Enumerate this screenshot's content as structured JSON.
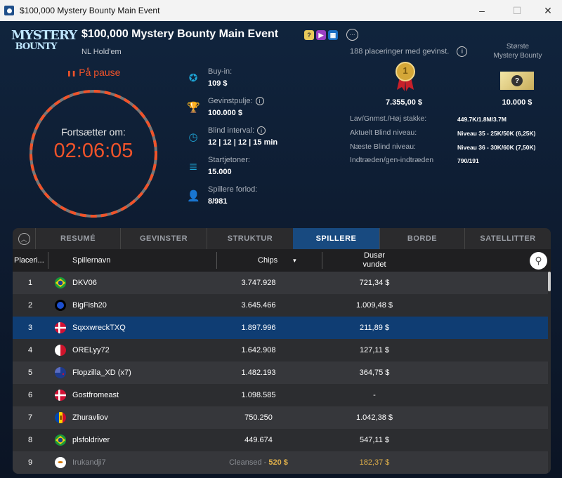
{
  "window": {
    "title": "$100,000 Mystery Bounty Main Event",
    "minimize": "–",
    "maximize": "☐",
    "close": "✕"
  },
  "header": {
    "logo_line1": "MYSTERY",
    "logo_line2": "BOUNTY",
    "title": "$100,000 Mystery Bounty Main Event",
    "game": "NL Hold'em",
    "badges": [
      {
        "icon": "question-badge-icon",
        "glyph": "?",
        "color": "#e8c95a"
      },
      {
        "icon": "video-badge-icon",
        "glyph": "▶",
        "color": "#9b3fc3"
      },
      {
        "icon": "calendar-badge-icon",
        "glyph": "▦",
        "color": "#1b6fc4"
      }
    ],
    "more": "···"
  },
  "status": {
    "pause_icon": "❚❚",
    "pause": "På pause",
    "resume_label": "Fortsætter om:",
    "countdown": "02:06:05"
  },
  "info": [
    {
      "icon": "chip-icon",
      "glyph": "✪",
      "label": "Buy-in:",
      "value": "109 $"
    },
    {
      "icon": "trophy-icon",
      "glyph": "🏆",
      "label": "Gevinstpulje:",
      "value": "100.000 $",
      "info": true
    },
    {
      "icon": "clock-icon",
      "glyph": "◷",
      "label": "Blind interval:",
      "value": "12 | 12 | 12 | 15 min",
      "info": true
    },
    {
      "icon": "chips-stack-icon",
      "glyph": "≣",
      "label": "Startjetoner:",
      "value": "15.000"
    },
    {
      "icon": "player-icon",
      "glyph": "👤",
      "label": "Spillere forlod:",
      "value": "8/981"
    }
  ],
  "prizes": {
    "places": "188 placeringer med gevinst.",
    "first_prize": "7.355,00 $",
    "medal_number": "1",
    "biggest_label_1": "Største",
    "biggest_label_2": "Mystery Bounty",
    "biggest_value": "10.000 $",
    "ticket_glyph": "?"
  },
  "stats": [
    {
      "label": "Lav/Gnmst./Høj stakke:",
      "value": "449.7K/1.8M/3.7M"
    },
    {
      "label": "Aktuelt Blind niveau:",
      "value": "Niveau 35 - 25K/50K (6,25K)"
    },
    {
      "label": "Næste Blind niveau:",
      "value": "Niveau 36 - 30K/60K (7,50K)"
    },
    {
      "label": "Indtræden/gen-indtræden",
      "value": "790/191"
    }
  ],
  "tabs": [
    {
      "label": "RESUMÉ"
    },
    {
      "label": "GEVINSTER"
    },
    {
      "label": "STRUKTUR"
    },
    {
      "label": "SPILLERE",
      "active": true
    },
    {
      "label": "BORDE"
    },
    {
      "label": "SATELLITTER"
    }
  ],
  "table": {
    "columns": {
      "rank": "Placeri...",
      "name": "Spillernavn",
      "chips": "Chips",
      "prize_1": "Dusør",
      "prize_2": "vundet"
    },
    "sort_icon": "▾",
    "rows": [
      {
        "rank": "1",
        "flag": "brazil",
        "name": "DKV06",
        "chips": "3.747.928",
        "prize": "721,34 $"
      },
      {
        "rank": "2",
        "flag": "globe",
        "name": "BigFish20",
        "chips": "3.645.466",
        "prize": "1.009,48 $"
      },
      {
        "rank": "3",
        "flag": "denmark",
        "name": "SqxxwreckTXQ",
        "chips": "1.897.996",
        "prize": "211,89 $",
        "selected": true
      },
      {
        "rank": "4",
        "flag": "malta",
        "name": "ORELyy72",
        "chips": "1.642.908",
        "prize": "127,11 $"
      },
      {
        "rank": "5",
        "flag": "new-zealand",
        "name": "Flopzilla_XD (x7)",
        "chips": "1.482.193",
        "prize": "364,75 $"
      },
      {
        "rank": "6",
        "flag": "denmark",
        "name": "Gostfromeast",
        "chips": "1.098.585",
        "prize": "-"
      },
      {
        "rank": "7",
        "flag": "moldova",
        "name": "Zhuravliov",
        "chips": "750.250",
        "prize": "1.042,38 $"
      },
      {
        "rank": "8",
        "flag": "brazil",
        "name": "plsfoldriver",
        "chips": "449.674",
        "prize": "547,11 $"
      },
      {
        "rank": "9",
        "flag": "cyprus",
        "name": "Irukandji7",
        "chips_prefix": "Cleansed - ",
        "chips": "520 $",
        "prize": "182,37 $",
        "cleansed": true
      }
    ]
  },
  "colors": {
    "accent": "#f0532a",
    "active_tab": "#184a80",
    "selected_row": "#0f3d73",
    "cleansed": "#e0b04a",
    "icon": "#1ea5d6"
  }
}
